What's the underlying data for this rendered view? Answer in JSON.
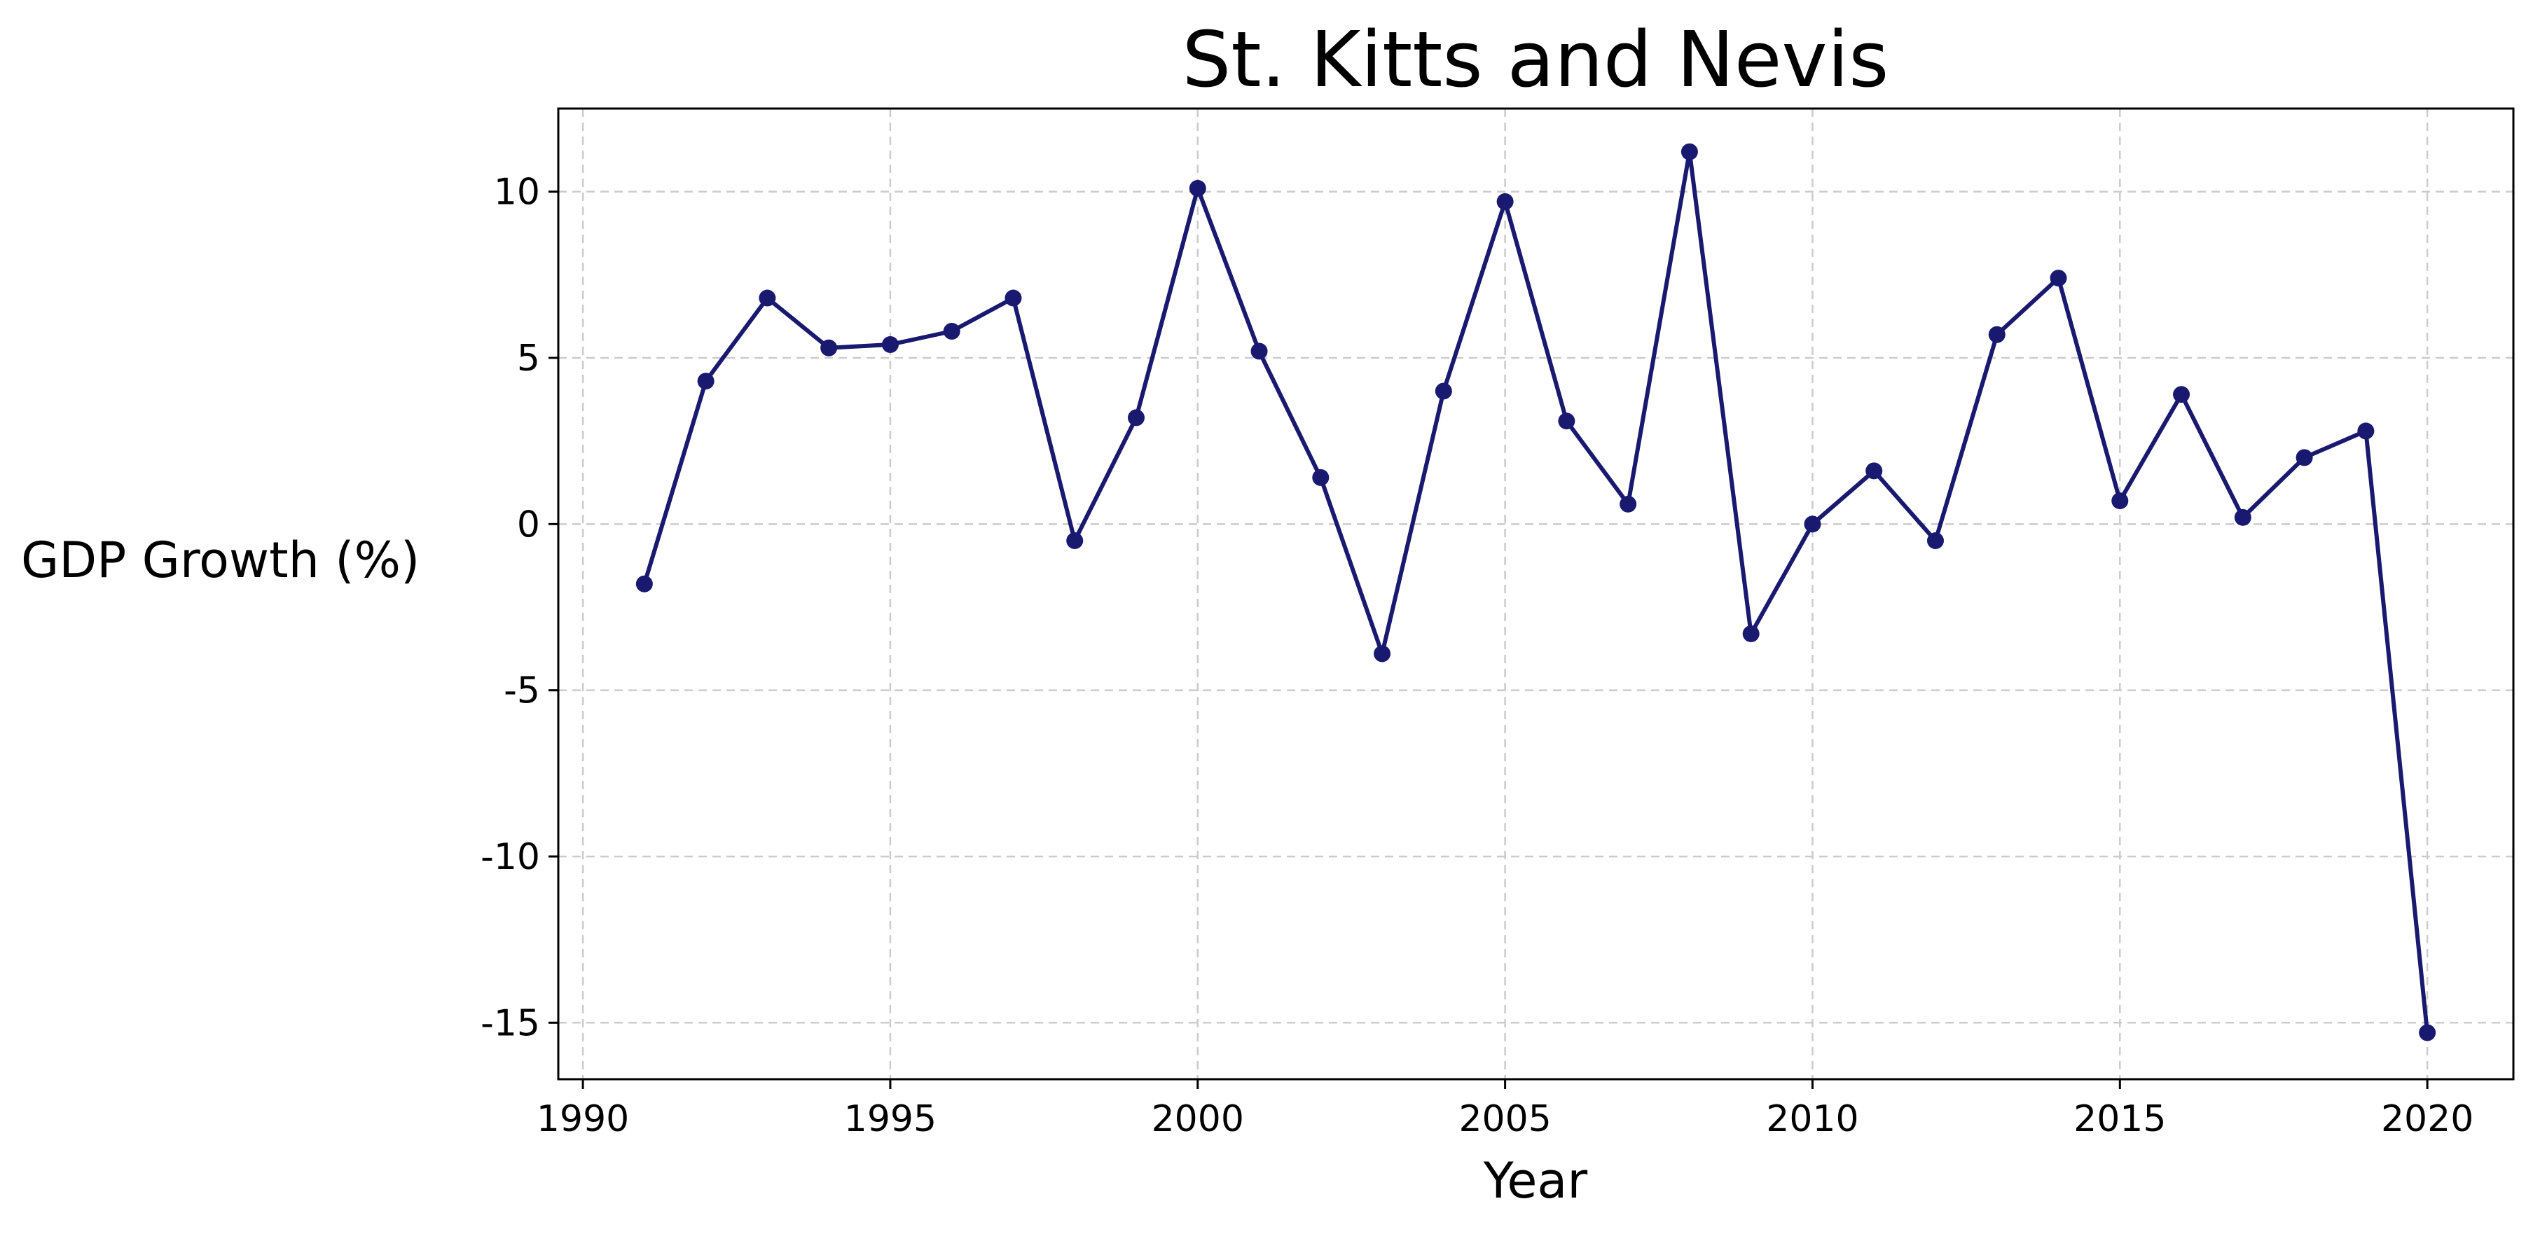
{
  "chart_data": {
    "type": "line",
    "title": "St. Kitts and Nevis",
    "xlabel": "Year",
    "ylabel": "GDP Growth (%)",
    "xlim": [
      1989.6,
      2021.4
    ],
    "ylim": [
      -16.7,
      12.5
    ],
    "x_ticks": [
      1990,
      1995,
      2000,
      2005,
      2010,
      2015,
      2020
    ],
    "y_ticks": [
      10,
      5,
      0,
      -5,
      -10,
      -15
    ],
    "grid": true,
    "line_color": "#191970",
    "series": [
      {
        "x": [
          1991,
          1992,
          1993,
          1994,
          1995,
          1996,
          1997,
          1998,
          1999,
          2000,
          2001,
          2002,
          2003,
          2004,
          2005,
          2006,
          2007,
          2008,
          2009,
          2010,
          2011,
          2012,
          2013,
          2014,
          2015,
          2016,
          2017,
          2018,
          2019,
          2020
        ],
        "values": [
          -1.8,
          4.3,
          6.8,
          5.3,
          5.4,
          5.8,
          6.8,
          -0.5,
          3.2,
          10.1,
          5.2,
          1.4,
          -3.9,
          4.0,
          9.7,
          3.1,
          0.6,
          11.2,
          -3.3,
          0.0,
          1.6,
          -0.5,
          5.7,
          7.4,
          0.7,
          3.9,
          0.2,
          2.0,
          2.8,
          -15.3
        ]
      }
    ]
  }
}
